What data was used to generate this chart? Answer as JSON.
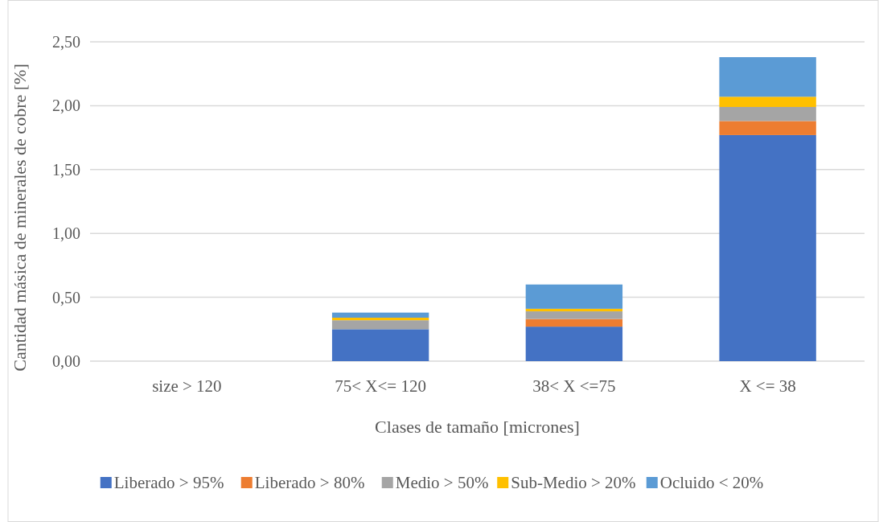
{
  "chart_data": {
    "type": "bar",
    "stacked": true,
    "xlabel": "Clases de tamaño [micrones]",
    "ylabel": "Cantidad másica de minerales de cobre [%]",
    "categories": [
      "size > 120",
      "75< X<= 120",
      "38< X <=75",
      "X <= 38"
    ],
    "series": [
      {
        "name": "Liberado > 95%",
        "color": "#4472c4",
        "values": [
          0,
          0.25,
          0.27,
          1.77
        ]
      },
      {
        "name": "Liberado > 80%",
        "color": "#ed7d31",
        "values": [
          0,
          0,
          0.06,
          0.11
        ]
      },
      {
        "name": "Medio > 50%",
        "color": "#a5a5a5",
        "values": [
          0,
          0.07,
          0.06,
          0.11
        ]
      },
      {
        "name": "Sub-Medio > 20%",
        "color": "#ffc000",
        "values": [
          0,
          0.02,
          0.02,
          0.08
        ]
      },
      {
        "name": "Ocluido < 20%",
        "color": "#5b9bd5",
        "values": [
          0,
          0.04,
          0.19,
          0.31
        ]
      }
    ],
    "ylim": [
      0,
      2.5
    ],
    "yticks": [
      {
        "value": 0,
        "label": "0,00"
      },
      {
        "value": 0.5,
        "label": "0,50"
      },
      {
        "value": 1,
        "label": "1,00"
      },
      {
        "value": 1.5,
        "label": "1,50"
      },
      {
        "value": 2,
        "label": "2,00"
      },
      {
        "value": 2.5,
        "label": "2,50"
      }
    ],
    "grid": "y",
    "legend": "bottom"
  }
}
